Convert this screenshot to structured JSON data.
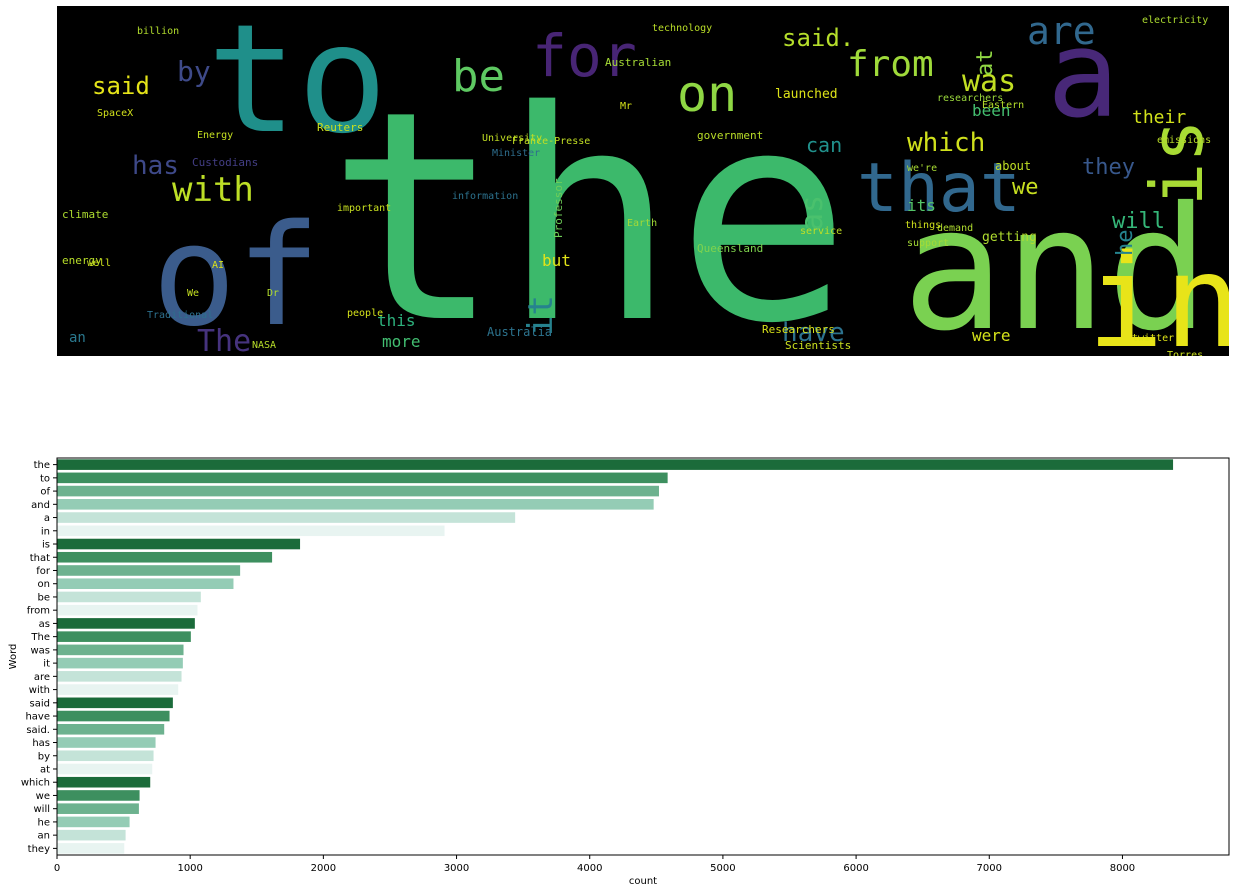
{
  "wordcloud": {
    "background": "#000000",
    "words": [
      {
        "text": "the",
        "color": "#3cb96b"
      },
      {
        "text": "and",
        "color": "#7ad151"
      },
      {
        "text": "to",
        "color": "#1f8f8a"
      },
      {
        "text": "of",
        "color": "#3b5c8c"
      },
      {
        "text": "in",
        "color": "#e8e419"
      },
      {
        "text": "a",
        "color": "#482878"
      },
      {
        "text": "is",
        "color": "#a8db34"
      },
      {
        "text": "that",
        "color": "#31688e"
      },
      {
        "text": "for",
        "color": "#482575"
      },
      {
        "text": "on",
        "color": "#8fd744"
      },
      {
        "text": "be",
        "color": "#5ec962"
      },
      {
        "text": "from",
        "color": "#9fda3a"
      },
      {
        "text": "was",
        "color": "#c2df23"
      },
      {
        "text": "are",
        "color": "#31688e"
      },
      {
        "text": "with",
        "color": "#bddf26"
      },
      {
        "text": "said",
        "color": "#e5e419"
      },
      {
        "text": "The",
        "color": "#46337e"
      },
      {
        "text": "by",
        "color": "#3e4a89"
      },
      {
        "text": "has",
        "color": "#3e4989"
      },
      {
        "text": "said.",
        "color": "#b5de2b"
      },
      {
        "text": "which",
        "color": "#d0e11c"
      },
      {
        "text": "have",
        "color": "#2c728e"
      },
      {
        "text": "it",
        "color": "#26828e"
      },
      {
        "text": "as",
        "color": "#4ac16d"
      },
      {
        "text": "at",
        "color": "#90d743"
      },
      {
        "text": "we",
        "color": "#c8e020"
      },
      {
        "text": "will",
        "color": "#35b779"
      },
      {
        "text": "he",
        "color": "#25838e"
      },
      {
        "text": "they",
        "color": "#38588c"
      },
      {
        "text": "an",
        "color": "#2a788e"
      },
      {
        "text": "their",
        "color": "#d2e21b"
      },
      {
        "text": "can",
        "color": "#21918c"
      },
      {
        "text": "been",
        "color": "#44bf70"
      },
      {
        "text": "more",
        "color": "#42be71"
      },
      {
        "text": "were",
        "color": "#d5e21a"
      },
      {
        "text": "this",
        "color": "#2db27d"
      },
      {
        "text": "its",
        "color": "#54c568"
      },
      {
        "text": "but",
        "color": "#e2e418"
      },
      {
        "text": "Australia",
        "color": "#2c738e"
      },
      {
        "text": "about",
        "color": "#c0df25"
      },
      {
        "text": "launched",
        "color": "#dde318"
      },
      {
        "text": "getting",
        "color": "#b0dd2f"
      },
      {
        "text": "Reuters",
        "color": "#cde11d"
      },
      {
        "text": "Queensland",
        "color": "#7fd34e"
      },
      {
        "text": "energy",
        "color": "#b8de29"
      },
      {
        "text": "climate",
        "color": "#addc30"
      },
      {
        "text": "government",
        "color": "#bade28"
      },
      {
        "text": "Researchers",
        "color": "#d8e219"
      },
      {
        "text": "Scientists",
        "color": "#cae11f"
      },
      {
        "text": "Professor",
        "color": "#6ece58"
      },
      {
        "text": "Australian",
        "color": "#a5db36"
      },
      {
        "text": "Energy",
        "color": "#c5e021"
      },
      {
        "text": "technology",
        "color": "#bade28"
      },
      {
        "text": "billion",
        "color": "#b2dd2d"
      },
      {
        "text": "electricity",
        "color": "#addc30"
      },
      {
        "text": "France-Presse",
        "color": "#c2df23"
      },
      {
        "text": "researchers",
        "color": "#9bd93c"
      },
      {
        "text": "Minister",
        "color": "#2e6e8e"
      },
      {
        "text": "Custodians",
        "color": "#433e85"
      },
      {
        "text": "Traditional",
        "color": "#2d708e"
      },
      {
        "text": "twitter",
        "color": "#dfe318"
      },
      {
        "text": "Torres",
        "color": "#cae11f"
      },
      {
        "text": "NASA",
        "color": "#b8de29"
      },
      {
        "text": "SpaceX",
        "color": "#d2e21b"
      },
      {
        "text": "service",
        "color": "#c0df25"
      },
      {
        "text": "support",
        "color": "#a5db36"
      },
      {
        "text": "demand",
        "color": "#b0dd2f"
      },
      {
        "text": "emissions",
        "color": "#bade28"
      },
      {
        "text": "people",
        "color": "#d5e21a"
      },
      {
        "text": "Earth",
        "color": "#a2da37"
      },
      {
        "text": "information",
        "color": "#2c728e"
      },
      {
        "text": "important",
        "color": "#c8e020"
      },
      {
        "text": "University",
        "color": "#c2df23"
      },
      {
        "text": "things",
        "color": "#d0e11c"
      },
      {
        "text": "Eastern",
        "color": "#b5de2b"
      },
      {
        "text": "well",
        "color": "#cde11d"
      },
      {
        "text": "Mr",
        "color": "#d5e21a"
      },
      {
        "text": "We",
        "color": "#c5e021"
      },
      {
        "text": "AI",
        "color": "#dde318"
      },
      {
        "text": "Dr",
        "color": "#b2dd2d"
      },
      {
        "text": "we're",
        "color": "#a8db34"
      }
    ]
  },
  "chart_data": {
    "type": "bar",
    "orientation": "horizontal",
    "xlabel": "count",
    "ylabel": "Word",
    "xlim": [
      0,
      8800
    ],
    "xticks": [
      0,
      1000,
      2000,
      3000,
      4000,
      5000,
      6000,
      7000,
      8000
    ],
    "categories": [
      "the",
      "to",
      "of",
      "and",
      "a",
      "in",
      "is",
      "that",
      "for",
      "on",
      "be",
      "from",
      "as",
      "The",
      "was",
      "it",
      "are",
      "with",
      "said",
      "have",
      "said.",
      "has",
      "by",
      "at",
      "which",
      "we",
      "will",
      "he",
      "an",
      "they"
    ],
    "values": [
      8380,
      4585,
      4520,
      4480,
      3440,
      2910,
      1825,
      1615,
      1375,
      1325,
      1080,
      1055,
      1035,
      1005,
      950,
      945,
      935,
      910,
      870,
      845,
      805,
      740,
      725,
      715,
      700,
      620,
      615,
      545,
      515,
      505
    ],
    "palette": [
      "#1b6b3a",
      "#3d8f5f",
      "#6db28f",
      "#94ccb5",
      "#c4e3d8",
      "#e8f4f1"
    ]
  }
}
